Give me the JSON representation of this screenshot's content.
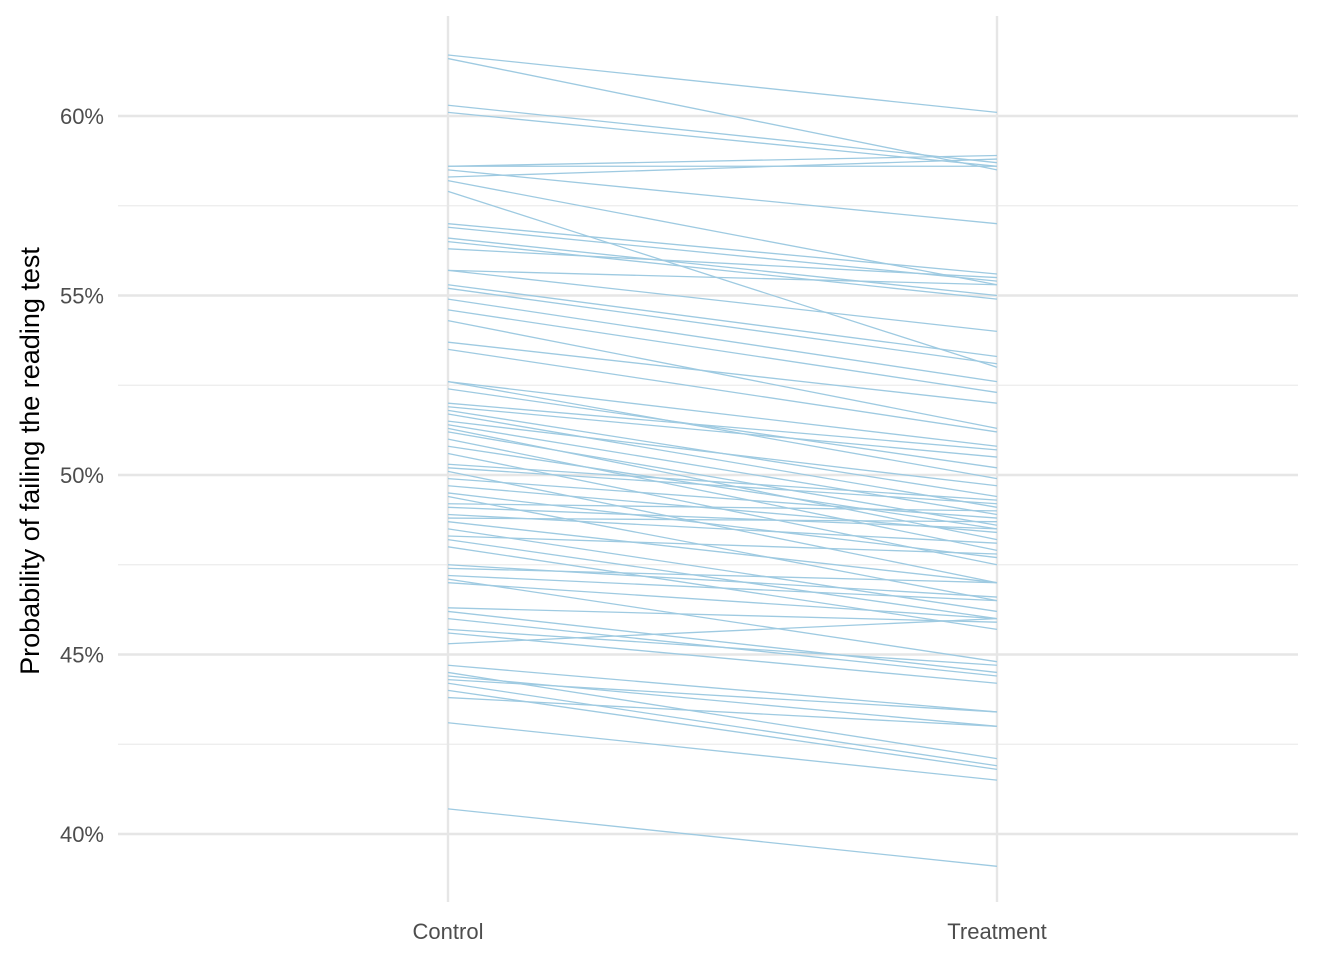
{
  "chart_data": {
    "type": "line",
    "title": "",
    "xlabel": "",
    "ylabel": "Probability of failing the reading test",
    "categories": [
      "Control",
      "Treatment"
    ],
    "ylim": [
      0.382,
      0.625
    ],
    "y_ticks": [
      0.4,
      0.45,
      0.5,
      0.55,
      0.6
    ],
    "y_tick_labels": [
      "40%",
      "45%",
      "50%",
      "55%",
      "60%"
    ],
    "y_minor_ticks": [
      0.425,
      0.475,
      0.525,
      0.575
    ],
    "grid": true,
    "legend": "none",
    "line_color": "#9ecae1",
    "pairs": [
      [
        0.617,
        0.601
      ],
      [
        0.616,
        0.585
      ],
      [
        0.603,
        0.587
      ],
      [
        0.601,
        0.586
      ],
      [
        0.586,
        0.589
      ],
      [
        0.586,
        0.586
      ],
      [
        0.583,
        0.588
      ],
      [
        0.585,
        0.57
      ],
      [
        0.582,
        0.553
      ],
      [
        0.579,
        0.53
      ],
      [
        0.57,
        0.556
      ],
      [
        0.569,
        0.554
      ],
      [
        0.566,
        0.55
      ],
      [
        0.565,
        0.549
      ],
      [
        0.563,
        0.555
      ],
      [
        0.557,
        0.553
      ],
      [
        0.557,
        0.54
      ],
      [
        0.553,
        0.533
      ],
      [
        0.552,
        0.531
      ],
      [
        0.549,
        0.526
      ],
      [
        0.546,
        0.523
      ],
      [
        0.543,
        0.513
      ],
      [
        0.537,
        0.52
      ],
      [
        0.535,
        0.512
      ],
      [
        0.526,
        0.508
      ],
      [
        0.526,
        0.499
      ],
      [
        0.524,
        0.502
      ],
      [
        0.52,
        0.507
      ],
      [
        0.519,
        0.505
      ],
      [
        0.518,
        0.494
      ],
      [
        0.517,
        0.491
      ],
      [
        0.515,
        0.497
      ],
      [
        0.514,
        0.489
      ],
      [
        0.513,
        0.482
      ],
      [
        0.512,
        0.486
      ],
      [
        0.51,
        0.479
      ],
      [
        0.508,
        0.485
      ],
      [
        0.506,
        0.475
      ],
      [
        0.503,
        0.493
      ],
      [
        0.502,
        0.492
      ],
      [
        0.501,
        0.47
      ],
      [
        0.499,
        0.488
      ],
      [
        0.497,
        0.484
      ],
      [
        0.495,
        0.477
      ],
      [
        0.494,
        0.465
      ],
      [
        0.492,
        0.49
      ],
      [
        0.491,
        0.485
      ],
      [
        0.489,
        0.481
      ],
      [
        0.488,
        0.487
      ],
      [
        0.487,
        0.47
      ],
      [
        0.485,
        0.462
      ],
      [
        0.483,
        0.478
      ],
      [
        0.482,
        0.46
      ],
      [
        0.48,
        0.457
      ],
      [
        0.475,
        0.466
      ],
      [
        0.474,
        0.47
      ],
      [
        0.472,
        0.465
      ],
      [
        0.471,
        0.448
      ],
      [
        0.47,
        0.46
      ],
      [
        0.463,
        0.459
      ],
      [
        0.462,
        0.445
      ],
      [
        0.46,
        0.444
      ],
      [
        0.457,
        0.447
      ],
      [
        0.456,
        0.442
      ],
      [
        0.453,
        0.46
      ],
      [
        0.447,
        0.434
      ],
      [
        0.445,
        0.421
      ],
      [
        0.444,
        0.43
      ],
      [
        0.443,
        0.434
      ],
      [
        0.442,
        0.419
      ],
      [
        0.44,
        0.418
      ],
      [
        0.438,
        0.43
      ],
      [
        0.431,
        0.415
      ],
      [
        0.407,
        0.391
      ]
    ]
  }
}
